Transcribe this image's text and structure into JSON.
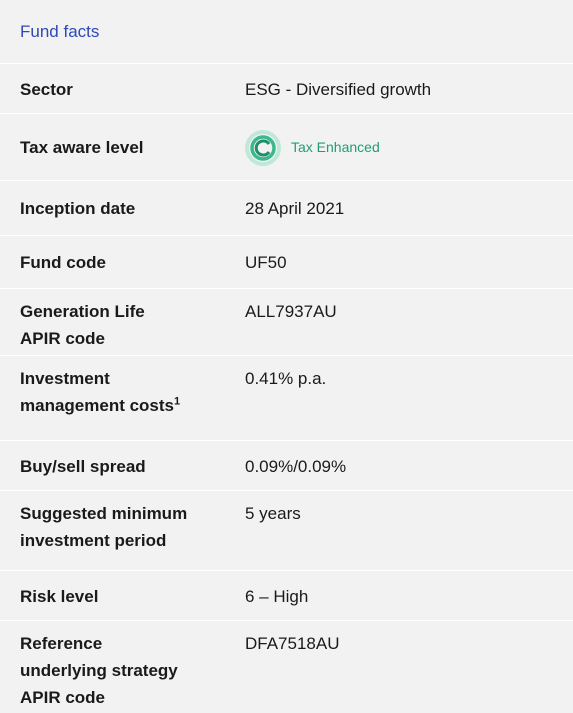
{
  "title": "Fund facts",
  "rows": [
    {
      "label": [
        "Sector"
      ],
      "value": "ESG - Diversified growth"
    },
    {
      "label": [
        "Tax aware level"
      ],
      "value": "Tax Enhanced",
      "icon": true
    },
    {
      "label": [
        "Inception date"
      ],
      "value": "28 April 2021"
    },
    {
      "label": [
        "Fund code"
      ],
      "value": "UF50"
    },
    {
      "label": [
        "Generation Life",
        "APIR code"
      ],
      "value": "ALL7937AU"
    },
    {
      "label": [
        "Investment",
        "management costs"
      ],
      "footnote": "1",
      "value": "0.41% p.a."
    },
    {
      "label": [
        "Buy/sell spread"
      ],
      "value": "0.09%/0.09%"
    },
    {
      "label": [
        "Suggested minimum",
        "investment period"
      ],
      "value": "5 years"
    },
    {
      "label": [
        "Risk level"
      ],
      "value": "6 – High"
    },
    {
      "label": [
        "Reference",
        "underlying strategy",
        "APIR code"
      ],
      "value": "DFA7518AU"
    }
  ]
}
